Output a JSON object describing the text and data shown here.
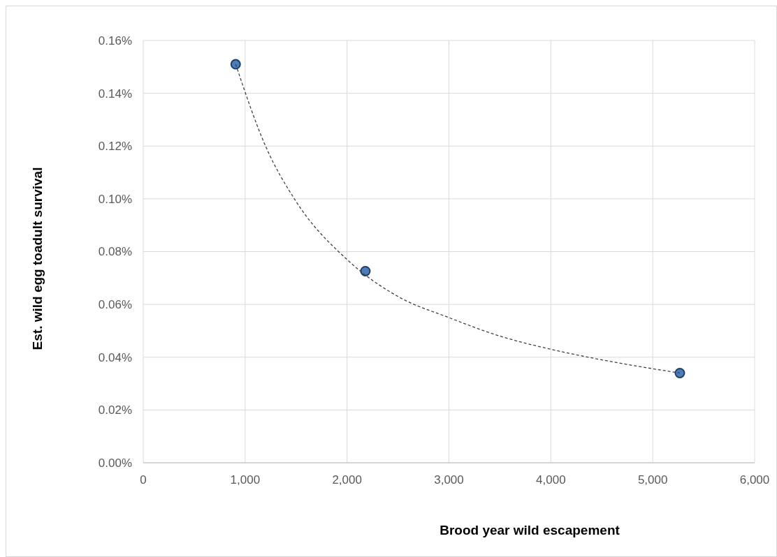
{
  "chart_data": {
    "type": "scatter",
    "xlabel": "Brood year wild escapement",
    "ylabel": "Est. wild egg toadult survival",
    "xlim": [
      0,
      6000
    ],
    "xticks": [
      0,
      {
        "value": 1000,
        "label": "1,000"
      },
      {
        "value": 2000,
        "label": "2,000"
      },
      {
        "value": 3000,
        "label": "3,000"
      },
      {
        "value": 4000,
        "label": "4,000"
      },
      {
        "value": 5000,
        "label": "5,000"
      },
      {
        "value": 6000,
        "label": "6,000"
      }
    ],
    "ylim": [
      0,
      0.16
    ],
    "yticks": [
      {
        "value": 0,
        "label": "0.00%"
      },
      {
        "value": 0.02,
        "label": "0.02%"
      },
      {
        "value": 0.04,
        "label": "0.04%"
      },
      {
        "value": 0.06,
        "label": "0.06%"
      },
      {
        "value": 0.08,
        "label": "0.08%"
      },
      {
        "value": 0.1,
        "label": "0.10%"
      },
      {
        "value": 0.12,
        "label": "0.12%"
      },
      {
        "value": 0.14,
        "label": "0.14%"
      },
      {
        "value": 0.16,
        "label": "0.16%"
      }
    ],
    "grid": true,
    "marker": "circle",
    "series": [
      {
        "type": "scatter",
        "color": "#4a7ebb",
        "x": [
          907,
          2180,
          5266
        ],
        "values": [
          0.151,
          0.0726,
          0.034
        ]
      },
      {
        "type": "line",
        "color": "#404040",
        "line_style": "dashed",
        "marker": "none",
        "x": [
          907,
          1200,
          1500,
          2000,
          2500,
          3000,
          3500,
          4000,
          4500,
          5266
        ],
        "values": [
          0.151,
          0.12,
          0.099,
          0.077,
          0.063,
          0.055,
          0.048,
          0.043,
          0.039,
          0.034
        ]
      }
    ]
  }
}
